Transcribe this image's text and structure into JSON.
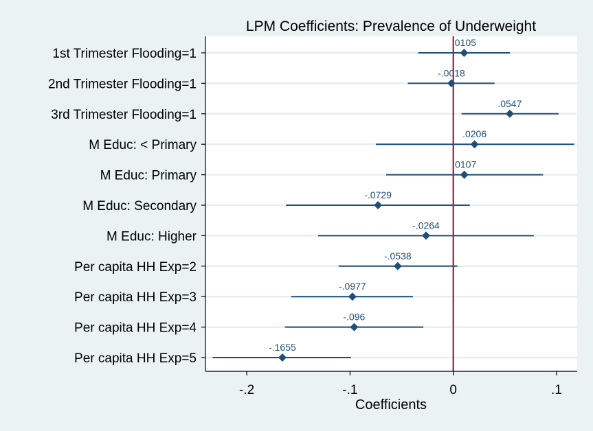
{
  "chart_data": {
    "type": "scatter",
    "title": "LPM Coefficients: Prevalence of Underweight",
    "xlabel": "Coefficients",
    "ylabel": "",
    "xlim": [
      -0.24,
      0.12
    ],
    "xticks": [
      -0.2,
      -0.1,
      0,
      0.1
    ],
    "xtick_labels": [
      "-.2",
      "-.1",
      "0",
      ".1"
    ],
    "reference_line": {
      "x": 0,
      "color": "#a0002a"
    },
    "grid": true,
    "colors": {
      "marker": "#1f4e79",
      "ci": "#1f4e79",
      "label": "#1f4e79",
      "background": "#eaf2f3",
      "plot": "#ffffff"
    },
    "series": [
      {
        "categories": [
          "1st Trimester Flooding=1",
          "2nd Trimester Flooding=1",
          "3rd Trimester Flooding=1",
          "M Educ: < Primary",
          "M Educ: Primary",
          "M Educ: Secondary",
          "M Educ: Higher",
          "Per capita HH Exp=2",
          "Per capita HH Exp=3",
          "Per capita HH Exp=4",
          "Per capita HH Exp=5"
        ],
        "estimates": [
          0.0105,
          -0.0018,
          0.0547,
          0.0206,
          0.0107,
          -0.0729,
          -0.0264,
          -0.0538,
          -0.0977,
          -0.096,
          -0.1655
        ],
        "ci_low": [
          -0.034,
          -0.044,
          0.008,
          -0.075,
          -0.065,
          -0.162,
          -0.131,
          -0.111,
          -0.157,
          -0.163,
          -0.233
        ],
        "ci_high": [
          0.055,
          0.04,
          0.102,
          0.117,
          0.087,
          0.016,
          0.078,
          0.004,
          -0.039,
          -0.029,
          -0.099
        ],
        "labels": [
          ".0105",
          "-.0018",
          ".0547",
          ".0206",
          ".0107",
          "-.0729",
          "-.0264",
          "-.0538",
          "-.0977",
          "-.096",
          "-.1655"
        ]
      }
    ]
  }
}
